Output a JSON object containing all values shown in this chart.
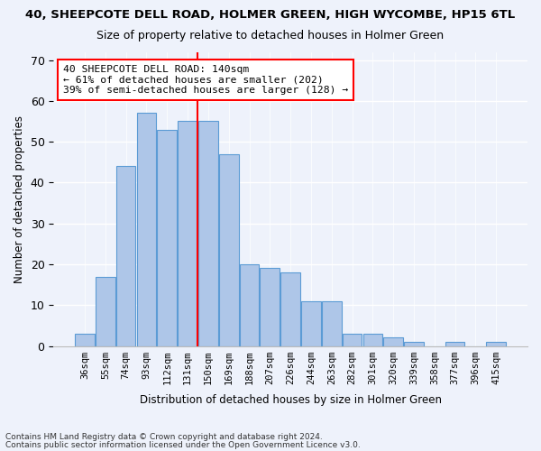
{
  "title": "40, SHEEPCOTE DELL ROAD, HOLMER GREEN, HIGH WYCOMBE, HP15 6TL",
  "subtitle": "Size of property relative to detached houses in Holmer Green",
  "xlabel": "Distribution of detached houses by size in Holmer Green",
  "ylabel": "Number of detached properties",
  "categories": [
    "36sqm",
    "55sqm",
    "74sqm",
    "93sqm",
    "112sqm",
    "131sqm",
    "150sqm",
    "169sqm",
    "188sqm",
    "207sqm",
    "226sqm",
    "244sqm",
    "263sqm",
    "282sqm",
    "301sqm",
    "320sqm",
    "339sqm",
    "358sqm",
    "377sqm",
    "396sqm",
    "415sqm"
  ],
  "values": [
    3,
    17,
    44,
    57,
    53,
    55,
    55,
    47,
    20,
    19,
    18,
    11,
    11,
    3,
    3,
    2,
    1,
    0,
    1,
    0,
    1
  ],
  "bar_color": "#aec6e8",
  "bar_edge_color": "#5b9bd5",
  "background_color": "#eef2fb",
  "grid_color": "#ffffff",
  "vline_color": "red",
  "annotation_text": "40 SHEEPCOTE DELL ROAD: 140sqm\n← 61% of detached houses are smaller (202)\n39% of semi-detached houses are larger (128) →",
  "annotation_box_color": "white",
  "annotation_box_edgecolor": "red",
  "ylim": [
    0,
    72
  ],
  "yticks": [
    0,
    10,
    20,
    30,
    40,
    50,
    60,
    70
  ],
  "footer1": "Contains HM Land Registry data © Crown copyright and database right 2024.",
  "footer2": "Contains public sector information licensed under the Open Government Licence v3.0."
}
